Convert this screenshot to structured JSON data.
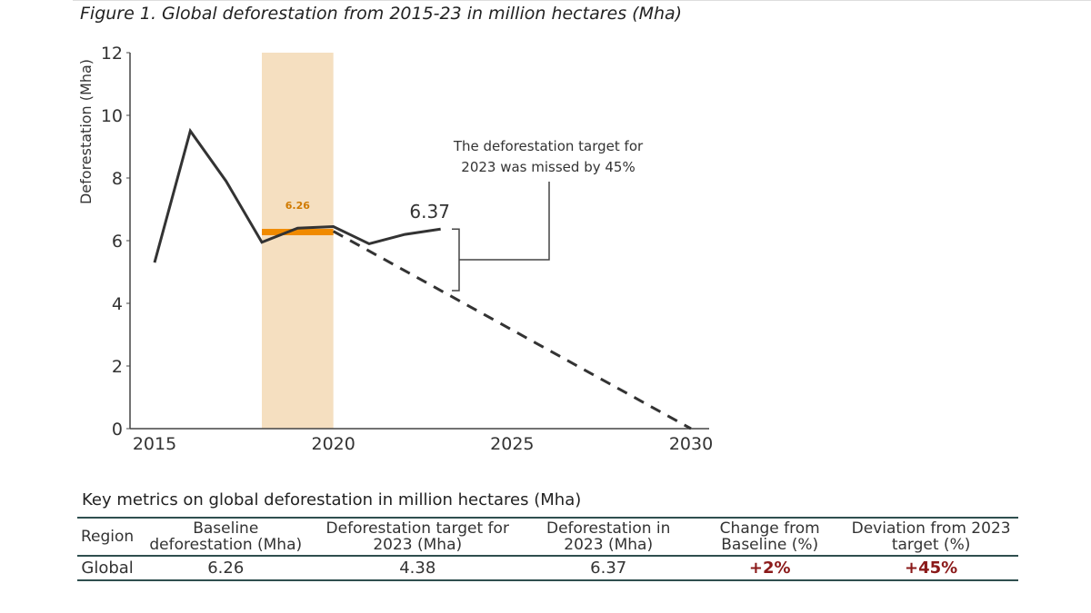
{
  "title": "Figure 1. Global deforestation from 2015-23 in million hectares (Mha)",
  "chart_data": {
    "type": "line",
    "title": "Figure 1. Global deforestation from 2015-23 in million hectares (Mha)",
    "ylabel": "Deforestation (Mha)",
    "xlabel": "",
    "xlim": [
      2015,
      2030
    ],
    "ylim": [
      0,
      12
    ],
    "xticks": [
      2015,
      2020,
      2025,
      2030
    ],
    "yticks": [
      0,
      2,
      4,
      6,
      8,
      10,
      12
    ],
    "series": [
      {
        "name": "Deforestation",
        "style": "solid",
        "x": [
          2015,
          2016,
          2017,
          2018,
          2019,
          2020,
          2021,
          2022,
          2023
        ],
        "y": [
          5.3,
          9.5,
          7.9,
          5.95,
          6.4,
          6.45,
          5.9,
          6.2,
          6.37
        ]
      },
      {
        "name": "Target pathway",
        "style": "dashed",
        "x": [
          2020,
          2030
        ],
        "y": [
          6.3,
          0
        ]
      }
    ],
    "baseline_period": [
      2018,
      2020
    ],
    "baseline_value": 6.26,
    "baseline_label": "6.26",
    "end_label": "6.37",
    "annotation": [
      "The deforestation target for",
      "2023 was missed by 45%"
    ],
    "colors": {
      "line": "#333333",
      "band": "#f5dfc0",
      "baseline": "#f08a00"
    }
  },
  "table": {
    "title": "Key metrics on global deforestation in million hectares (Mha)",
    "headers": [
      "Region",
      "Baseline deforestation (Mha)",
      "Deforestation target for 2023 (Mha)",
      "Deforestation in 2023 (Mha)",
      "Change from Baseline (%)",
      "Deviation from 2023 target (%)"
    ],
    "rows": [
      [
        "Global",
        "6.26",
        "4.38",
        "6.37",
        "+2%",
        "+45%"
      ]
    ]
  }
}
